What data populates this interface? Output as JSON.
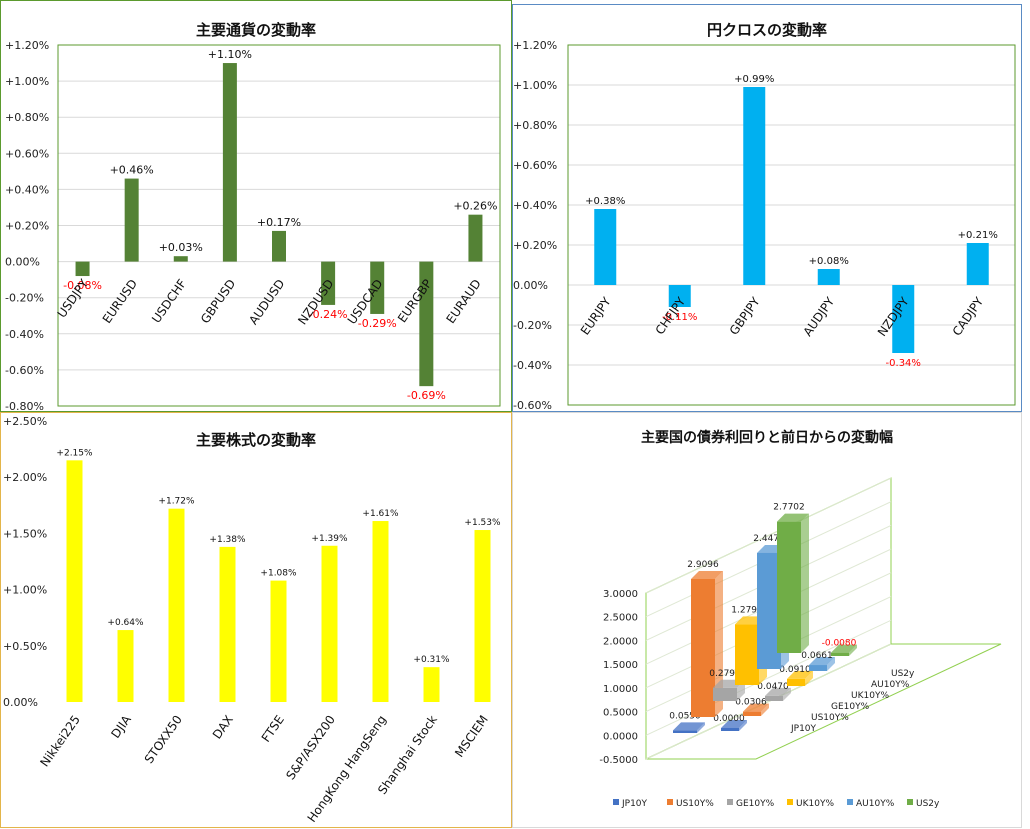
{
  "chart_data": [
    {
      "type": "bar",
      "title": "主要通貨の変動率",
      "categories": [
        "USDJPY",
        "EURUSD",
        "USDCHF",
        "GBPUSD",
        "AUDUSD",
        "NZDUSD",
        "USDCAD",
        "EURGBP",
        "EURAUD"
      ],
      "values": [
        -0.08,
        0.46,
        0.03,
        1.1,
        0.17,
        -0.24,
        -0.29,
        -0.69,
        0.26
      ],
      "data_labels": [
        "-0.08%",
        "+0.46%",
        "+0.03%",
        "+1.10%",
        "+0.17%",
        "-0.24%",
        "-0.29%",
        "-0.69%",
        "+0.26%"
      ],
      "ylim": [
        -0.8,
        1.2
      ],
      "y_ticks": [
        "-0.80%",
        "-0.60%",
        "-0.40%",
        "-0.20%",
        "0.00%",
        "+0.20%",
        "+0.40%",
        "+0.60%",
        "+0.80%",
        "+1.00%",
        "+1.20%"
      ],
      "grid": true,
      "colors": {
        "bar": "#548235",
        "negative_label": "#ff0000",
        "grid": "#d9d9d9"
      }
    },
    {
      "type": "bar",
      "title": "円クロスの変動率",
      "categories": [
        "EURJPY",
        "CHFJPY",
        "GBPJPY",
        "AUDJPY",
        "NZDJPY",
        "CADJPY"
      ],
      "values": [
        0.38,
        -0.11,
        0.99,
        0.08,
        -0.34,
        0.21
      ],
      "data_labels": [
        "+0.38%",
        "-0.11%",
        "+0.99%",
        "+0.08%",
        "-0.34%",
        "+0.21%"
      ],
      "ylim": [
        -0.6,
        1.2
      ],
      "y_ticks": [
        "-0.60%",
        "-0.40%",
        "-0.20%",
        "0.00%",
        "+0.20%",
        "+0.40%",
        "+0.60%",
        "+0.80%",
        "+1.00%",
        "+1.20%"
      ],
      "grid": true,
      "colors": {
        "bar": "#00b0f0",
        "negative_label": "#ff0000",
        "grid": "#d9d9d9"
      }
    },
    {
      "type": "bar",
      "title": "主要株式の変動率",
      "categories": [
        "Nikkei225",
        "DJIA",
        "STOXX50",
        "DAX",
        "FTSE",
        "S&P/ASX200",
        "HongKong HangSeng",
        "Shanghai Stock",
        "MSCIEM"
      ],
      "values": [
        2.15,
        0.64,
        1.72,
        1.38,
        1.08,
        1.39,
        1.61,
        0.31,
        1.53
      ],
      "data_labels": [
        "+2.15%",
        "+0.64%",
        "+1.72%",
        "+1.38%",
        "+1.08%",
        "+1.39%",
        "+1.61%",
        "+0.31%",
        "+1.53%"
      ],
      "ylim": [
        0,
        2.5
      ],
      "y_ticks": [
        "0.00%",
        "+0.50%",
        "+1.00%",
        "+1.50%",
        "+2.00%",
        "+2.50%"
      ],
      "grid": false,
      "colors": {
        "bar": "#ffff00"
      }
    },
    {
      "type": "bar",
      "title": "主要国の債券利回りと前日からの変動幅",
      "categories": [
        "JP10Y",
        "US10Y%",
        "GE10Y%",
        "UK10Y%",
        "AU10Y%",
        "US2y"
      ],
      "series": [
        {
          "values": [
            0.055,
            2.9096,
            0.279,
            1.279,
            2.447,
            2.7702
          ],
          "labels": [
            "0.0550",
            "2.9096",
            "0.2790",
            "1.2790",
            "2.4470",
            "2.7702"
          ]
        },
        {
          "values": [
            0.0,
            0.0306,
            0.047,
            0.091,
            0.0661,
            -0.008
          ],
          "labels": [
            "0.0000",
            "0.0306",
            "0.0470",
            "0.0910",
            "0.0661",
            "-0.0080"
          ]
        }
      ],
      "depth_labels": [
        "JP10Y",
        "US10Y%",
        "GE10Y%",
        "UK10Y%",
        "AU10Y%",
        "US2y"
      ],
      "ylim": [
        -0.5,
        3.0
      ],
      "y_ticks": [
        "-0.5000",
        "0.0000",
        "0.5000",
        "1.0000",
        "1.5000",
        "2.0000",
        "2.5000",
        "3.0000"
      ],
      "legend": [
        "JP10Y",
        "US10Y%",
        "GE10Y%",
        "UK10Y%",
        "AU10Y%",
        "US2y"
      ],
      "legend_position": "bottom",
      "colors": {
        "JP10Y": "#4472c4",
        "US10Y%": "#ed7d31",
        "GE10Y%": "#a5a5a5",
        "UK10Y%": "#ffc000",
        "AU10Y%": "#5b9bd5",
        "US2y": "#70ad47",
        "negative_label": "#ff0000",
        "wall": "#92d050"
      }
    }
  ]
}
